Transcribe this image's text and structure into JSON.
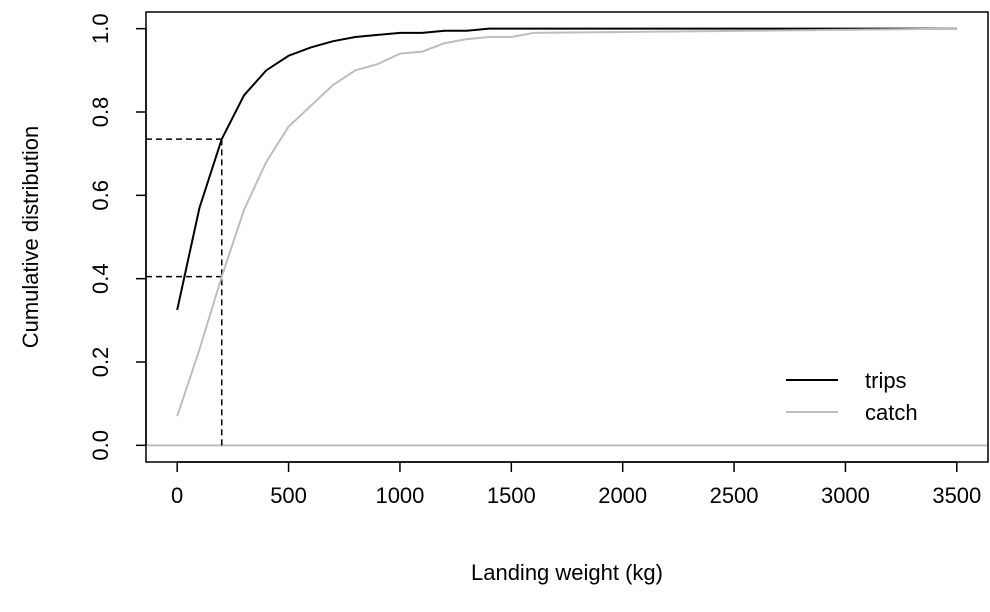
{
  "chart_data": {
    "type": "line",
    "xlabel": "Landing weight (kg)",
    "ylabel": "Cumulative distribution",
    "xlim": [
      -140,
      3640
    ],
    "ylim": [
      -0.04,
      1.04
    ],
    "xticks": [
      0,
      500,
      1000,
      1500,
      2000,
      2500,
      3000,
      3500
    ],
    "yticks": [
      {
        "value": 0,
        "label": "0.0"
      },
      {
        "value": 0.2,
        "label": "0.2"
      },
      {
        "value": 0.4,
        "label": "0.4"
      },
      {
        "value": 0.6,
        "label": "0.6"
      },
      {
        "value": 0.8,
        "label": "0.8"
      },
      {
        "value": 1,
        "label": "1.0"
      }
    ],
    "series": [
      {
        "name": "trips",
        "color": "#000000",
        "x": [
          0,
          100,
          200,
          300,
          400,
          500,
          600,
          700,
          800,
          900,
          1000,
          1100,
          1200,
          1300,
          1400,
          1500,
          3500
        ],
        "values": [
          0.325,
          0.57,
          0.735,
          0.84,
          0.9,
          0.935,
          0.955,
          0.97,
          0.98,
          0.985,
          0.99,
          0.99,
          0.995,
          0.995,
          1.0,
          1.0,
          1.0
        ]
      },
      {
        "name": "catch",
        "color": "#bebebe",
        "x": [
          0,
          100,
          200,
          300,
          400,
          500,
          600,
          700,
          800,
          900,
          1000,
          1100,
          1200,
          1300,
          1400,
          1500,
          1600,
          3500
        ],
        "values": [
          0.07,
          0.23,
          0.405,
          0.565,
          0.68,
          0.765,
          0.815,
          0.865,
          0.9,
          0.915,
          0.94,
          0.945,
          0.965,
          0.975,
          0.98,
          0.98,
          0.99,
          1.0
        ]
      }
    ],
    "reference_x": 200,
    "reference_y": [
      0.735,
      0.405
    ],
    "hline": 0,
    "hline_color": "#bebebe",
    "legend": "bottom-right"
  }
}
